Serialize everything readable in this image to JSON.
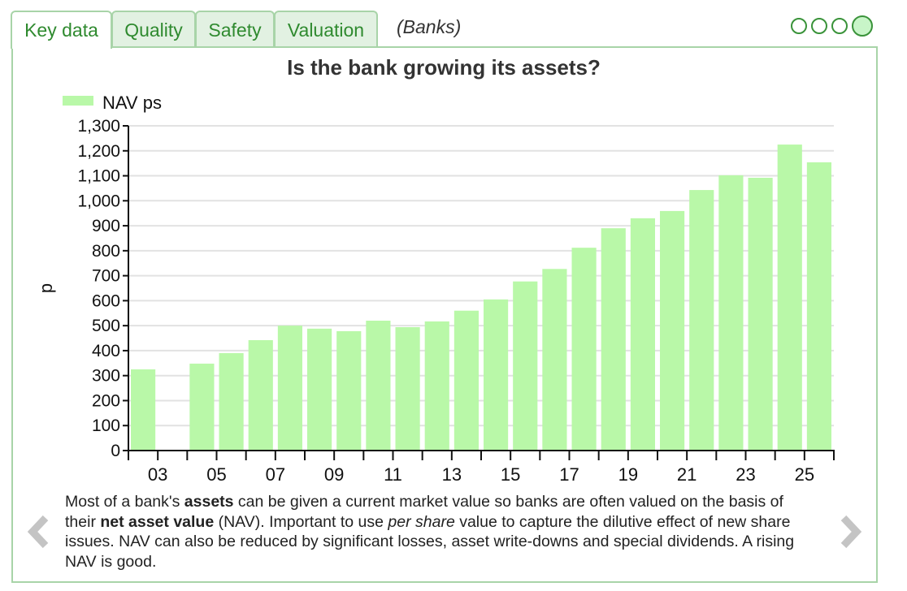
{
  "tabs": [
    {
      "label": "Key data",
      "active": true
    },
    {
      "label": "Quality"
    },
    {
      "label": "Safety"
    },
    {
      "label": "Valuation"
    }
  ],
  "sector": "(Banks)",
  "page_dots": {
    "count": 4,
    "active": 4
  },
  "colors": {
    "bar": "#b9f8a8",
    "accent": "#2f8a2f",
    "border": "#a8d4a8"
  },
  "description_parts": [
    {
      "t": "Most of a bank's "
    },
    {
      "t": "assets",
      "b": true
    },
    {
      "t": " can be given a current market value so banks are often valued on the basis of their "
    },
    {
      "t": "net asset value",
      "b": true
    },
    {
      "t": " (NAV). Important to use "
    },
    {
      "t": "per share",
      "i": true
    },
    {
      "t": " value to capture the dilutive effect of new share issues. NAV can also be reduced by significant losses, asset write-downs and special dividends. A rising NAV is good."
    }
  ],
  "nav": {
    "prev": "previous-arrow",
    "next": "next-arrow"
  },
  "chart_data": {
    "type": "bar",
    "title": "Is the bank growing its assets?",
    "legend": [
      "NAV ps"
    ],
    "legend_position": "top-left",
    "ylabel": "p",
    "xlabel": "",
    "ylim": [
      0,
      1300
    ],
    "yticks": [
      0,
      100,
      200,
      300,
      400,
      500,
      600,
      700,
      800,
      900,
      1000,
      1100,
      1200,
      1300
    ],
    "ytick_labels": [
      "0",
      "100",
      "200",
      "300",
      "400",
      "500",
      "600",
      "700",
      "800",
      "900",
      "1,000",
      "1,100",
      "1,200",
      "1,300"
    ],
    "categories": [
      "03",
      "04",
      "05",
      "06",
      "07",
      "08",
      "09",
      "10",
      "11",
      "12",
      "13",
      "14",
      "15",
      "16",
      "17",
      "18",
      "19",
      "20",
      "21",
      "22",
      "23",
      "24",
      "25",
      "26"
    ],
    "xtick_labels": [
      "03",
      "05",
      "07",
      "09",
      "11",
      "13",
      "15",
      "17",
      "19",
      "21",
      "23",
      "25"
    ],
    "grid": true,
    "series": [
      {
        "name": "NAV ps",
        "values": [
          325,
          null,
          348,
          390,
          442,
          500,
          488,
          478,
          520,
          494,
          517,
          560,
          605,
          677,
          727,
          812,
          890,
          930,
          959,
          1043,
          1102,
          1092,
          1225,
          1154
        ]
      }
    ]
  }
}
